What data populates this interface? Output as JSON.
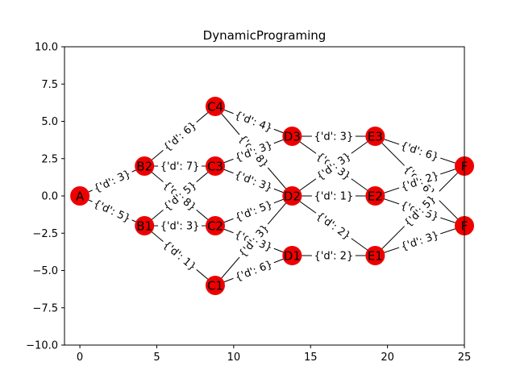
{
  "chart_data": {
    "type": "network",
    "title": "DynamicPrograming",
    "xlim": [
      -1,
      25
    ],
    "ylim": [
      -10,
      10
    ],
    "x_ticks": [
      "0",
      "5",
      "10",
      "15",
      "20",
      "25"
    ],
    "y_ticks": [
      "10.0",
      "7.5",
      "5.0",
      "2.5",
      "0.0",
      "−2.5",
      "−5.0",
      "−7.5",
      "−10.0"
    ],
    "node_color": "#ee0000",
    "nodes": [
      {
        "id": "A",
        "label": "A",
        "x": 0,
        "y": 0
      },
      {
        "id": "B1",
        "label": "B1",
        "x": 4.2,
        "y": -2
      },
      {
        "id": "B2",
        "label": "B2",
        "x": 4.2,
        "y": 2
      },
      {
        "id": "C1",
        "label": "C1",
        "x": 8.8,
        "y": -6
      },
      {
        "id": "C2",
        "label": "C2",
        "x": 8.8,
        "y": -2
      },
      {
        "id": "C3",
        "label": "C3",
        "x": 8.8,
        "y": 2
      },
      {
        "id": "C4",
        "label": "C4",
        "x": 8.8,
        "y": 6
      },
      {
        "id": "D1",
        "label": "D1",
        "x": 13.8,
        "y": -4
      },
      {
        "id": "D2",
        "label": "D2",
        "x": 13.8,
        "y": 0
      },
      {
        "id": "D3",
        "label": "D3",
        "x": 13.8,
        "y": 4
      },
      {
        "id": "E1",
        "label": "E1",
        "x": 19.2,
        "y": -4
      },
      {
        "id": "E2",
        "label": "E2",
        "x": 19.2,
        "y": 0
      },
      {
        "id": "E3",
        "label": "E3",
        "x": 19.2,
        "y": 4
      },
      {
        "id": "F1",
        "label": "F",
        "x": 25,
        "y": 2
      },
      {
        "id": "F2",
        "label": "F",
        "x": 25,
        "y": -2
      }
    ],
    "edges": [
      {
        "from": "A",
        "to": "B2",
        "label": "{'d': 3}"
      },
      {
        "from": "A",
        "to": "B1",
        "label": "{'d': 5}"
      },
      {
        "from": "B2",
        "to": "C4",
        "label": "{'d': 6}"
      },
      {
        "from": "B2",
        "to": "C3",
        "label": "{'d': 7}"
      },
      {
        "from": "B2",
        "to": "C2",
        "label": "{'d': 8}"
      },
      {
        "from": "B1",
        "to": "C3",
        "label": "{'d': 5}"
      },
      {
        "from": "B1",
        "to": "C2",
        "label": "{'d': 3}"
      },
      {
        "from": "B1",
        "to": "C1",
        "label": "{'d': 1}"
      },
      {
        "from": "C4",
        "to": "D3",
        "label": "{'d': 4}"
      },
      {
        "from": "C4",
        "to": "D2",
        "label": "{'d': 8}"
      },
      {
        "from": "C3",
        "to": "D3",
        "label": "{'d': 3}"
      },
      {
        "from": "C3",
        "to": "D2",
        "label": "{'d': 3}"
      },
      {
        "from": "C2",
        "to": "D2",
        "label": "{'d': 5}"
      },
      {
        "from": "C2",
        "to": "D1",
        "label": "{'d': 3}"
      },
      {
        "from": "C1",
        "to": "D2",
        "label": "{'d': 3}"
      },
      {
        "from": "C1",
        "to": "D1",
        "label": "{'d': 6}"
      },
      {
        "from": "D3",
        "to": "E3",
        "label": "{'d': 3}"
      },
      {
        "from": "D3",
        "to": "E2",
        "label": "{'d': 3}"
      },
      {
        "from": "D2",
        "to": "E3",
        "label": "{'d': 3}"
      },
      {
        "from": "D2",
        "to": "E2",
        "label": "{'d': 1}"
      },
      {
        "from": "D2",
        "to": "E1",
        "label": "{'d': 2}"
      },
      {
        "from": "D1",
        "to": "E1",
        "label": "{'d': 2}"
      },
      {
        "from": "E3",
        "to": "F1",
        "label": "{'d': 6}"
      },
      {
        "from": "E3",
        "to": "F2",
        "label": "{'d': 6}"
      },
      {
        "from": "E2",
        "to": "F1",
        "label": "{'d': 2}"
      },
      {
        "from": "E2",
        "to": "F2",
        "label": "{'d': 5}"
      },
      {
        "from": "E1",
        "to": "F1",
        "label": "{'d': 5}"
      },
      {
        "from": "E1",
        "to": "F2",
        "label": "{'d': 3}"
      }
    ]
  }
}
